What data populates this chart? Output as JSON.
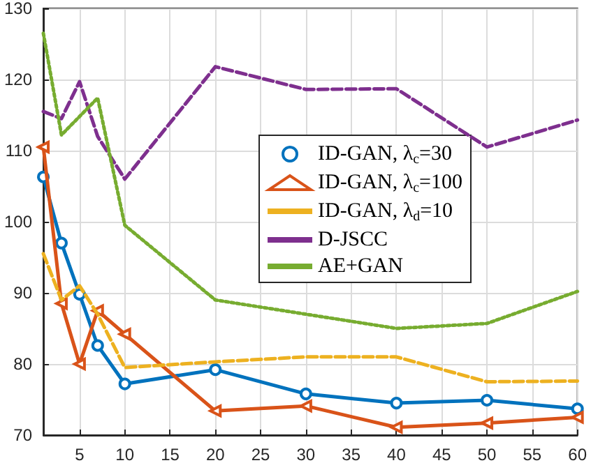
{
  "chart_data": {
    "type": "line",
    "x": [
      1,
      3,
      5,
      7,
      10,
      20,
      30,
      40,
      50,
      60
    ],
    "xlim": [
      1,
      60
    ],
    "xticks": [
      5,
      10,
      15,
      20,
      25,
      30,
      35,
      40,
      45,
      50,
      55,
      60
    ],
    "ylim": [
      70,
      130
    ],
    "yticks": [
      70,
      80,
      90,
      100,
      110,
      120,
      130
    ],
    "grid": true,
    "legend": "right",
    "series": [
      {
        "name": "ID-GAN, λ$_{c}$=30",
        "color": "#0072bd",
        "marker": "circle",
        "line_style": "solid",
        "values": [
          106.3,
          97,
          89.8,
          82.6,
          77.2,
          79.2,
          75.8,
          74.5,
          74.9,
          73.7
        ]
      },
      {
        "name": "ID-GAN, λ$_{c}$=100",
        "color": "#d95319",
        "marker": "triangle",
        "line_style": "solid",
        "values": [
          110.5,
          88.5,
          80,
          87.5,
          84.2,
          73.4,
          74.1,
          71.1,
          71.7,
          72.5
        ]
      },
      {
        "name": "ID-GAN, λ$_{d}$=10",
        "color": "#edb120",
        "marker": "none",
        "line_style": "dashed",
        "values": [
          95.5,
          89,
          91,
          87,
          79.5,
          80.3,
          81,
          81,
          77.5,
          77.6
        ]
      },
      {
        "name": "D-JSCC",
        "color": "#7e2f8e",
        "marker": "none",
        "line_style": "dashed",
        "values": [
          115.5,
          114.5,
          119.7,
          112,
          106,
          121.8,
          118.6,
          118.7,
          110.5,
          114.3
        ]
      },
      {
        "name": "AE+GAN",
        "color": "#77ac30",
        "marker": "none",
        "line_style": "dotted",
        "values": [
          126.5,
          112.2,
          114.8,
          117.4,
          99.5,
          89,
          87,
          85,
          85.7,
          90.2
        ]
      }
    ]
  }
}
